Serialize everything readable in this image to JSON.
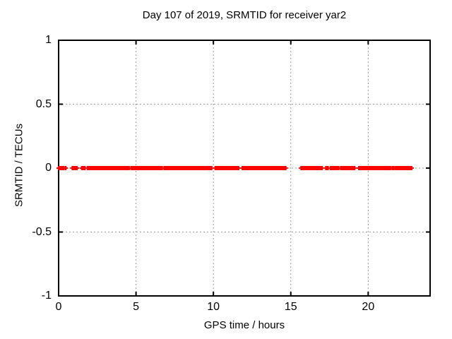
{
  "chart_data": {
    "type": "scatter",
    "title": "Day 107 of 2019, SRMTID for receiver yar2",
    "xlabel": "GPS time / hours",
    "ylabel": "SRMTID / TECUs",
    "xlim": [
      0,
      24
    ],
    "ylim": [
      -1,
      1
    ],
    "xticks": [
      0,
      5,
      10,
      15,
      20
    ],
    "xtick_labels": [
      "0",
      "5",
      "10",
      "15",
      "20"
    ],
    "yticks": [
      1,
      0.5,
      0,
      -0.5,
      -1
    ],
    "ytick_labels": [
      "1",
      "0.5",
      "0",
      "-0.5",
      "-1"
    ],
    "grid": true,
    "legend_position": "none",
    "colors": {
      "background": "#ffffff",
      "axis_border": "#000000",
      "grid": "#999999",
      "text": "#000000",
      "series": "#ff0000"
    },
    "series": [
      {
        "name": "SRMTID",
        "marker": "plus",
        "marker_color": "#ff0000",
        "y_value": 0,
        "x_segments_hours": [
          [
            0.0,
            0.33
          ],
          [
            0.44,
            0.47
          ],
          [
            0.88,
            1.19
          ],
          [
            1.49,
            1.7
          ],
          [
            1.86,
            2.16
          ],
          [
            2.25,
            2.66
          ],
          [
            2.74,
            3.19
          ],
          [
            3.27,
            3.98
          ],
          [
            4.07,
            4.56
          ],
          [
            4.68,
            5.32
          ],
          [
            5.4,
            5.93
          ],
          [
            6.01,
            6.69
          ],
          [
            6.81,
            7.22
          ],
          [
            7.3,
            7.76
          ],
          [
            7.83,
            8.44
          ],
          [
            8.49,
            9.12
          ],
          [
            9.2,
            9.66
          ],
          [
            9.73,
            9.89
          ],
          [
            10.11,
            10.49
          ],
          [
            10.57,
            11.03
          ],
          [
            11.1,
            11.4
          ],
          [
            11.48,
            11.63
          ],
          [
            11.86,
            12.01
          ],
          [
            12.09,
            12.62
          ],
          [
            12.7,
            13.08
          ],
          [
            13.15,
            13.99
          ],
          [
            14.07,
            14.45
          ],
          [
            14.52,
            14.68
          ],
          [
            15.66,
            15.89
          ],
          [
            15.97,
            16.27
          ],
          [
            16.35,
            16.8
          ],
          [
            16.88,
            17.03
          ],
          [
            17.26,
            17.41
          ],
          [
            17.56,
            17.79
          ],
          [
            17.87,
            18.1
          ],
          [
            18.22,
            18.55
          ],
          [
            18.63,
            18.93
          ],
          [
            19.01,
            19.13
          ],
          [
            19.39,
            19.69
          ],
          [
            19.77,
            20.0
          ],
          [
            20.07,
            21.44
          ],
          [
            21.55,
            21.67
          ],
          [
            21.77,
            22.07
          ],
          [
            22.13,
            22.28
          ],
          [
            22.36,
            22.51
          ],
          [
            22.58,
            22.81
          ]
        ]
      }
    ]
  }
}
